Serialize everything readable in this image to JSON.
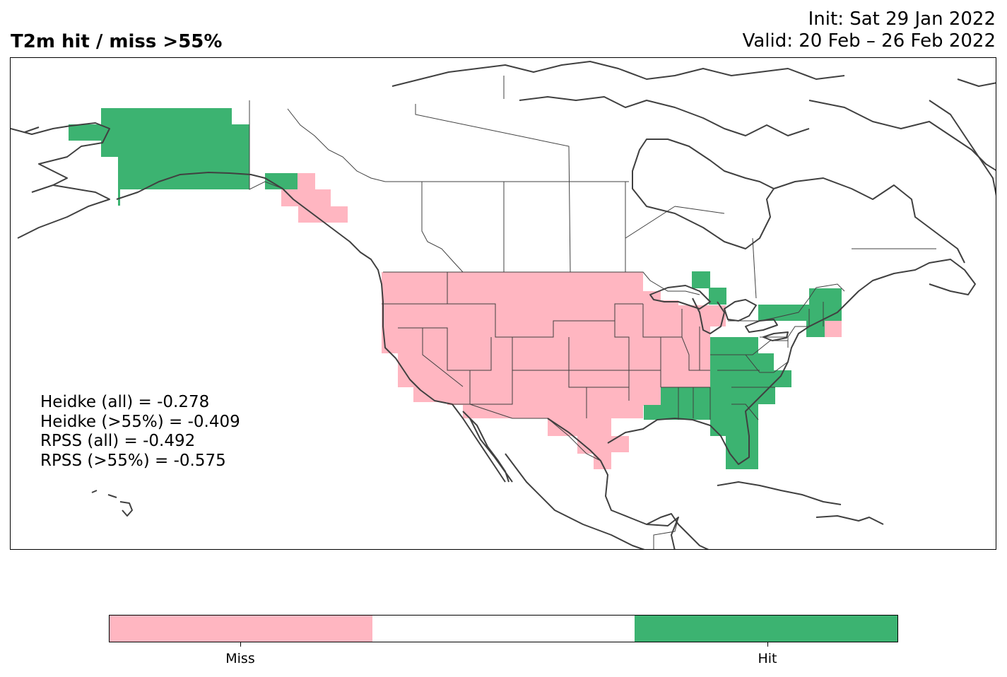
{
  "title": {
    "left": "T2m hit / miss  >55%",
    "init": "Init: Sat 29 Jan 2022",
    "valid": "Valid: 20 Feb – 26 Feb 2022"
  },
  "scores": [
    "Heidke (all) = -0.278",
    "Heidke (>55%) = -0.409",
    "RPSS (all) = -0.492",
    "RPSS (>55%) = -0.575"
  ],
  "legend": {
    "categories": [
      {
        "label": "Miss",
        "color": "#ffb6c1"
      },
      {
        "label": "",
        "color": "#ffffff"
      },
      {
        "label": "Hit",
        "color": "#3cb371"
      }
    ]
  },
  "colors": {
    "miss": "#ffb6c1",
    "hit": "#3cb371",
    "coastline": "#404040",
    "border": "#000000"
  }
}
